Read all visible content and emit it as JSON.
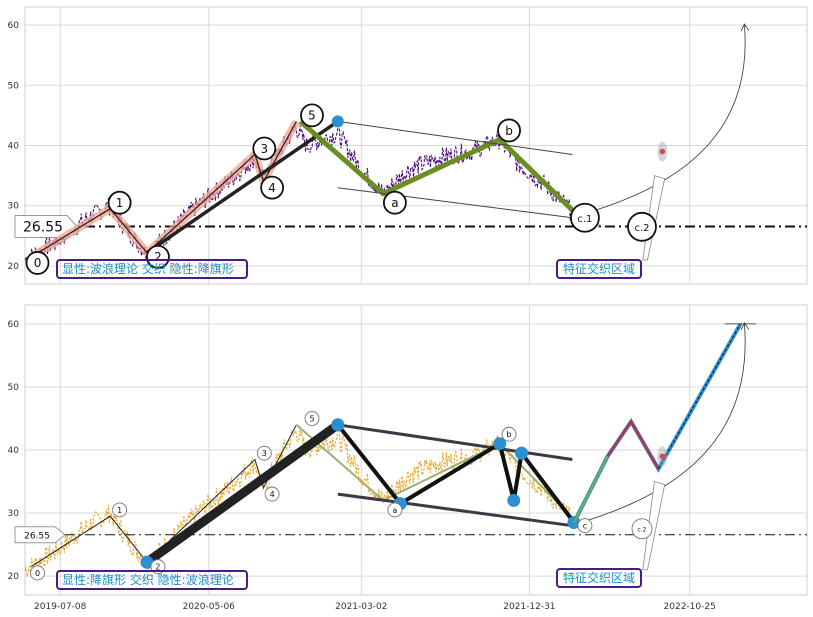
{
  "chart_data": {
    "type": "line",
    "x_ticks": [
      "2019-07-08",
      "2020-05-06",
      "2021-03-02",
      "2021-12-31",
      "2022-10-25"
    ],
    "y_ticks": [
      20,
      30,
      40,
      50,
      60
    ],
    "ylim": [
      17,
      63
    ],
    "panels": [
      {
        "price_label": "26.55",
        "price_level": 26.55,
        "box_label": "显性:波浪理论 交织 隐性:降旗形",
        "zone_label": "特征交织区域",
        "wave_labels": [
          {
            "text": "0",
            "x": 0.4,
            "y": 20.5
          },
          {
            "text": "1",
            "x": 10.9,
            "y": 30.5
          },
          {
            "text": "2",
            "x": 15.8,
            "y": 21.5
          },
          {
            "text": "3",
            "x": 29.4,
            "y": 39.5
          },
          {
            "text": "4",
            "x": 30.4,
            "y": 33
          },
          {
            "text": "5",
            "x": 35.5,
            "y": 45
          },
          {
            "text": "a",
            "x": 46.1,
            "y": 30.5
          },
          {
            "text": "b",
            "x": 60.7,
            "y": 42.5
          },
          {
            "text": "c.1",
            "x": 70.4,
            "y": 28
          },
          {
            "text": "c.2",
            "x": 77.7,
            "y": 26.5
          }
        ]
      },
      {
        "price_label": "26.55",
        "price_level": 26.55,
        "box_label": "显性:降旗形 交织 隐性:波浪理论",
        "zone_label": "特征交织区域",
        "wave_labels": [
          {
            "text": "0",
            "x": 0.4,
            "y": 20.5
          },
          {
            "text": "1",
            "x": 10.9,
            "y": 30.5
          },
          {
            "text": "2",
            "x": 15.8,
            "y": 21.5
          },
          {
            "text": "3",
            "x": 29.4,
            "y": 39.5
          },
          {
            "text": "4",
            "x": 30.4,
            "y": 33
          },
          {
            "text": "5",
            "x": 35.5,
            "y": 45
          },
          {
            "text": "a",
            "x": 46.1,
            "y": 30.5
          },
          {
            "text": "b",
            "x": 60.7,
            "y": 42.5
          },
          {
            "text": "c",
            "x": 70.4,
            "y": 28
          },
          {
            "text": "c.2",
            "x": 77.7,
            "y": 27.5
          }
        ]
      }
    ],
    "wave_path": [
      [
        0.8,
        21.5
      ],
      [
        10.9,
        29.5
      ],
      [
        15.6,
        22.2
      ],
      [
        29.4,
        38.5
      ],
      [
        30.5,
        34
      ],
      [
        34.7,
        44
      ]
    ],
    "bull_line": [
      [
        15.6,
        22.2
      ],
      [
        40.0,
        44
      ]
    ],
    "bear_path": [
      [
        35.2,
        44
      ],
      [
        45.8,
        32
      ],
      [
        60.7,
        41
      ],
      [
        70.2,
        29
      ]
    ],
    "flag_upper": [
      [
        40.0,
        44
      ],
      [
        70.0,
        38.5
      ]
    ],
    "flag_lower": [
      [
        40.0,
        33
      ],
      [
        70.0,
        28
      ]
    ],
    "flag_zigzag": [
      [
        40.0,
        44
      ],
      [
        48.0,
        31.5
      ],
      [
        60.7,
        41
      ],
      [
        62.5,
        32
      ],
      [
        63.5,
        39.5
      ],
      [
        70.2,
        28.5
      ]
    ],
    "projection": [
      [
        70.2,
        28.5
      ],
      [
        74.5,
        39
      ],
      [
        77.5,
        44.5
      ],
      [
        81.0,
        37
      ],
      [
        91.5,
        60
      ]
    ]
  }
}
